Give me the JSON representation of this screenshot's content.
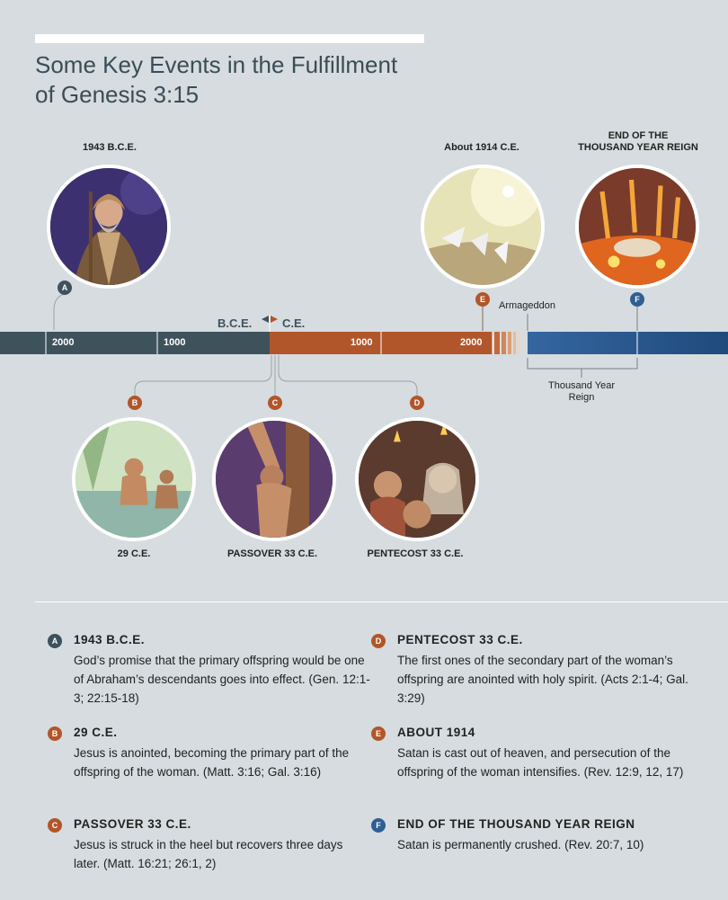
{
  "title": {
    "line1": "Some Key Events in the Fulfillment",
    "line2": "of Genesis 3:15"
  },
  "timeline": {
    "era_bce": "B.C.E.",
    "era_ce": "C.E.",
    "ticks": [
      "2000",
      "1000",
      "1000",
      "2000"
    ],
    "armageddon": "Armageddon",
    "thousand_year_reign": "Thousand Year Reign",
    "colors": {
      "bce": "#3e525c",
      "ce": "#b1562a",
      "future": "#2f5f92"
    }
  },
  "events": [
    {
      "letter": "A",
      "caption": "1943 B.C.E.",
      "image": "abraham-illustration",
      "heading": "1943 B.C.E.",
      "text": "God’s promise that the primary offspring would be one of Abraham’s descendants goes into effect. (Gen. 12:1-3; 22:15-18)"
    },
    {
      "letter": "B",
      "caption": "29 C.E.",
      "image": "jesus-baptism-illustration",
      "heading": "29 C.E.",
      "text": "Jesus is anointed, becoming the primary part of the offspring of the woman. (Matt. 3:16; Gal. 3:16)"
    },
    {
      "letter": "C",
      "caption": "PASSOVER 33 C.E.",
      "image": "jesus-on-stake-illustration",
      "heading": "PASSOVER 33 C.E.",
      "text": "Jesus is struck in the heel but recovers three days later. (Matt. 16:21; 26:1, 2)"
    },
    {
      "letter": "D",
      "caption": "PENTECOST 33 C.E.",
      "image": "disciples-holy-spirit-illustration",
      "heading": "PENTECOST 33 C.E.",
      "text": "The first ones of the secondary part of the woman’s offspring are anointed with holy spirit. (Acts 2:1-4; Gal. 3:29)"
    },
    {
      "letter": "E",
      "caption": "About 1914 C.E.",
      "image": "satan-cast-out-illustration",
      "heading": "ABOUT 1914",
      "text": "Satan is cast out of heaven, and persecution of the offspring of the woman intensifies. (Rev. 12:9, 12, 17)"
    },
    {
      "letter": "F",
      "caption_line1": "END OF THE",
      "caption_line2": "THOUSAND YEAR REIGN",
      "image": "satan-crushed-illustration",
      "heading": "END OF THE THOUSAND YEAR REIGN",
      "text": "Satan is permanently crushed. (Rev. 20:7, 10)"
    }
  ]
}
